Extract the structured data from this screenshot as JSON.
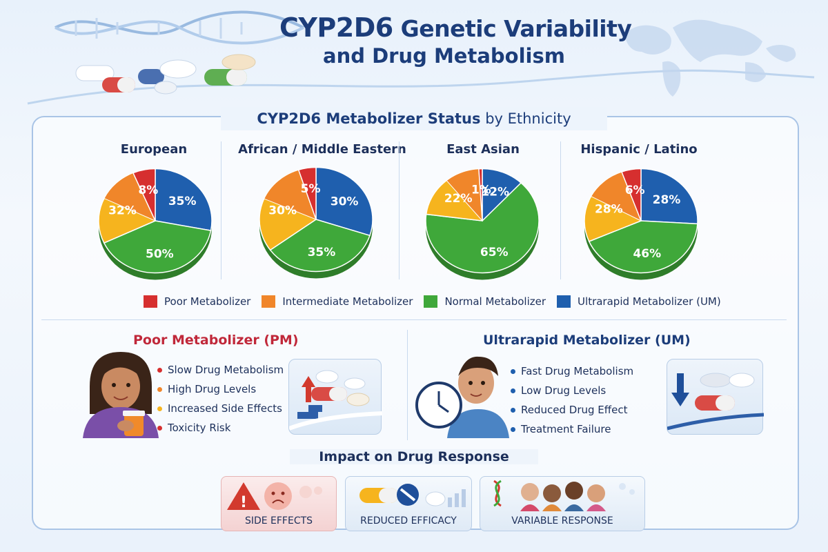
{
  "header": {
    "title_prefix": "CYP2D6",
    "title_rest": " Genetic Variability",
    "title_line2": "and Drug Metabolism"
  },
  "section": {
    "title_bold": "CYP2D6 Metabolizer Status",
    "title_light": " by Ethnicity"
  },
  "colors": {
    "poor": "#d62f2f",
    "intermediate": "#f0862a",
    "intermediate_alt": "#f6b41e",
    "normal": "#3fa83a",
    "ultrarapid": "#1f5fae"
  },
  "chart_data": [
    {
      "type": "pie",
      "title": "European",
      "categories": [
        "Ultrapid Metabolizer (UM)",
        "Normal Metabolizer",
        "Intermediate Metabolizer",
        "Poor Metabolizer"
      ],
      "values": [
        35,
        50,
        32,
        8
      ],
      "labels": [
        "35%",
        "50%",
        "32%",
        "8%"
      ]
    },
    {
      "type": "pie",
      "title": "African / Middle Eastern",
      "categories": [
        "Ultrapid Metabolizer (UM)",
        "Normal Metabolizer",
        "Intermediate Metabolizer",
        "Poor Metabolizer"
      ],
      "values": [
        30,
        35,
        30,
        5
      ],
      "labels": [
        "30%",
        "35%",
        "30%",
        "5%"
      ]
    },
    {
      "type": "pie",
      "title": "East Asian",
      "categories": [
        "Ultrapid Metabolizer (UM)",
        "Normal Metabolizer",
        "Intermediate Metabolizer",
        "Poor Metabolizer"
      ],
      "values": [
        12,
        65,
        22,
        1
      ],
      "labels": [
        "12%",
        "65%",
        "22%",
        "1%"
      ]
    },
    {
      "type": "pie",
      "title": "Hispanic / Latino",
      "categories": [
        "Ultrapid Metabolizer (UM)",
        "Normal Metabolizer",
        "Intermediate Metabolizer",
        "Poor Metabolizer"
      ],
      "values": [
        28,
        46,
        28,
        6
      ],
      "labels": [
        "28%",
        "46%",
        "28%",
        "6%"
      ]
    }
  ],
  "legend": [
    {
      "label": "Poor Metabolizer",
      "color": "#d62f2f"
    },
    {
      "label": "Intermediate Metabolizer",
      "color": "#f0862a"
    },
    {
      "label": "Normal Metabolizer",
      "color": "#3fa83a"
    },
    {
      "label": "Ultrarapid Metabolizer (UM)",
      "color": "#1f5fae"
    }
  ],
  "pm": {
    "title": "Poor Metabolizer (PM)",
    "title_color": "#c0283a",
    "bullets": [
      {
        "text": "Slow Drug Metabolism",
        "color": "#d62f2f"
      },
      {
        "text": "High Drug Levels",
        "color": "#f0862a"
      },
      {
        "text": "Increased Side Effects",
        "color": "#f6b41e"
      },
      {
        "text": "Toxicity Risk",
        "color": "#d62f2f"
      }
    ]
  },
  "um": {
    "title": "Ultrarapid Metabolizer (UM)",
    "title_color": "#1c3d7a",
    "bullets": [
      {
        "text": "Fast Drug Metabolism",
        "color": "#1f5fae"
      },
      {
        "text": "Low Drug Levels",
        "color": "#1f5fae"
      },
      {
        "text": "Reduced Drug Effect",
        "color": "#1f5fae"
      },
      {
        "text": "Treatment Failure",
        "color": "#1f5fae"
      }
    ]
  },
  "impact": {
    "title": "Impact on Drug Response",
    "cards": [
      {
        "label": "SIDE EFFECTS",
        "icon": "warning-icon"
      },
      {
        "label": "REDUCED EFFICACY",
        "icon": "pill-blocked-icon"
      },
      {
        "label": "VARIABLE RESPONSE",
        "icon": "people-dna-icon"
      }
    ]
  }
}
